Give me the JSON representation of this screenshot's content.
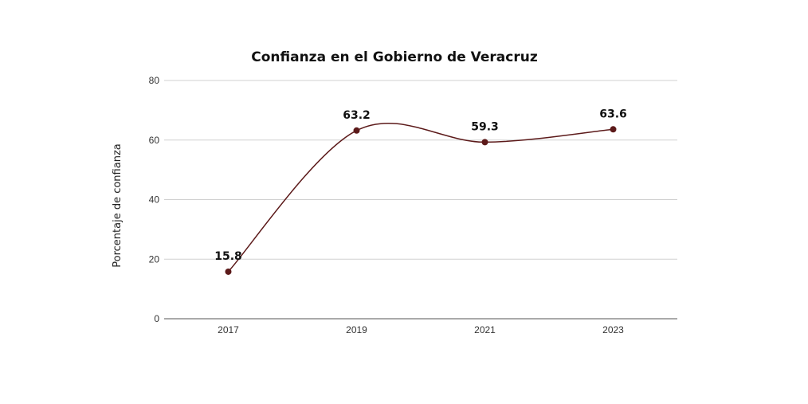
{
  "chart_data": {
    "type": "line",
    "title": "Confianza en el Gobierno de Veracruz",
    "xlabel": "",
    "ylabel": "Porcentaje de confianza",
    "categories": [
      "2017",
      "2019",
      "2021",
      "2023"
    ],
    "series": [
      {
        "values": [
          15.8,
          63.2,
          59.3,
          63.6
        ],
        "data_labels": [
          "15.8",
          "63.2",
          "59.3",
          "63.6"
        ]
      }
    ],
    "ylim": [
      0,
      80
    ],
    "yticks": [
      "0",
      "20",
      "40",
      "60",
      "80"
    ],
    "grid": true,
    "legend": "none",
    "smooth": true,
    "line_color": "#5c1a1a",
    "marker_color": "#5c1a1a"
  }
}
